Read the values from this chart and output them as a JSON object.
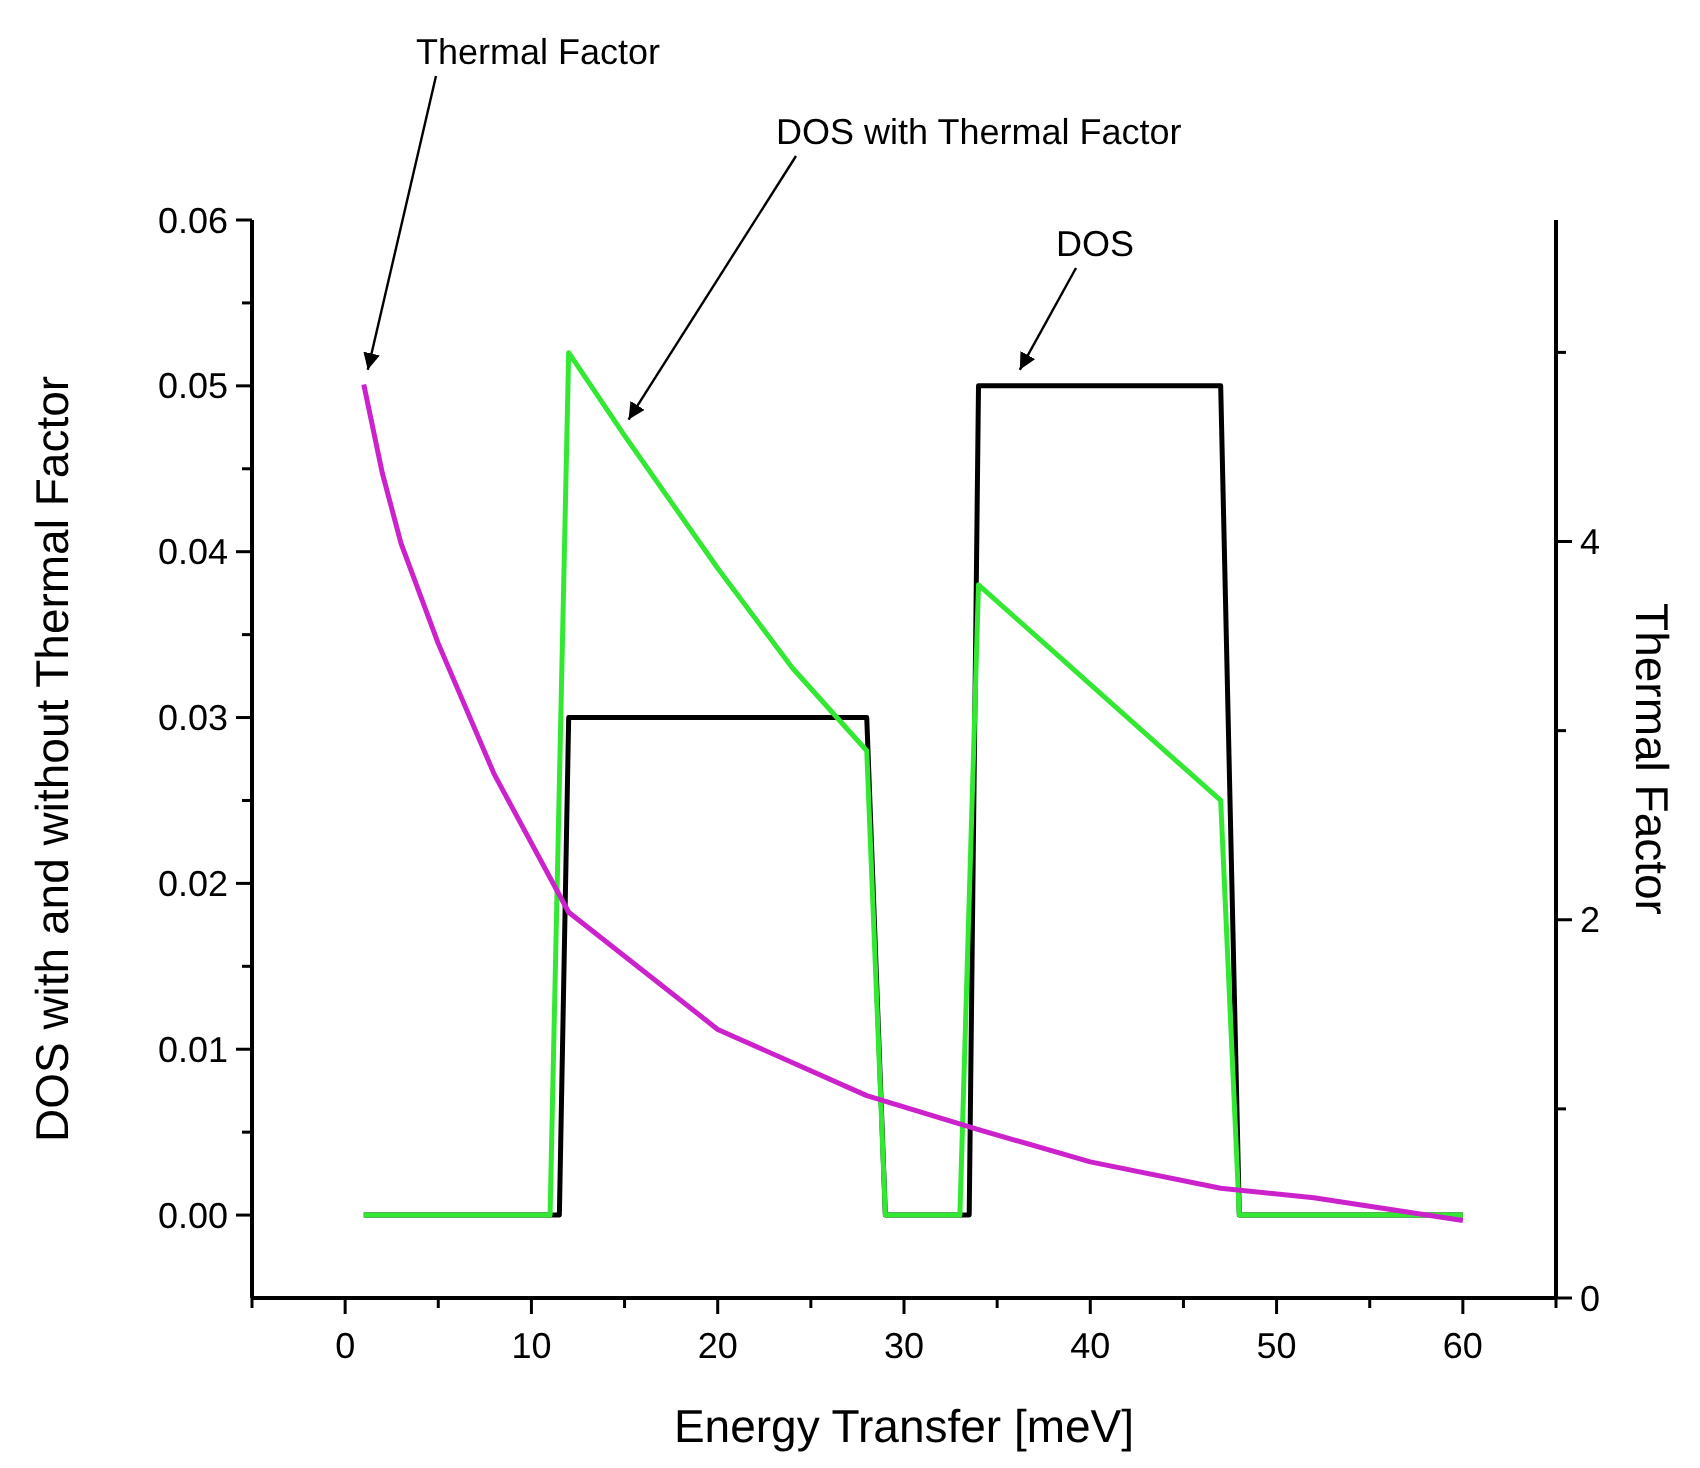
{
  "chart_data": {
    "type": "line",
    "xlabel": "Energy Transfer [meV]",
    "ylabel": "DOS with and without Thermal Factor",
    "y2label": "Thermal Factor",
    "xlim": [
      -5,
      65
    ],
    "xticks": [
      {
        "value": -5,
        "label": null
      },
      0,
      {
        "value": 5,
        "label": null
      },
      10,
      {
        "value": 15,
        "label": null
      },
      20,
      {
        "value": 25,
        "label": null
      },
      30,
      {
        "value": 35,
        "label": null
      },
      40,
      {
        "value": 45,
        "label": null
      },
      50,
      {
        "value": 55,
        "label": null
      },
      60,
      {
        "value": 65,
        "label": null
      }
    ],
    "ylim": [
      -0.005,
      0.06
    ],
    "yticks": [
      {
        "value": 0,
        "label": "0.00"
      },
      {
        "value": 0.005,
        "label": null
      },
      {
        "value": 0.01,
        "label": "0.01"
      },
      {
        "value": 0.015,
        "label": null
      },
      {
        "value": 0.02,
        "label": "0.02"
      },
      {
        "value": 0.025,
        "label": null
      },
      {
        "value": 0.03,
        "label": "0.03"
      },
      {
        "value": 0.035,
        "label": null
      },
      {
        "value": 0.04,
        "label": "0.04"
      },
      {
        "value": 0.045,
        "label": null
      },
      {
        "value": 0.05,
        "label": "0.05"
      },
      {
        "value": 0.055,
        "label": null
      },
      {
        "value": 0.06,
        "label": "0.06"
      }
    ],
    "y2lim": [
      0,
      5.7
    ],
    "y2ticks": [
      0,
      {
        "value": 1,
        "label": null
      },
      2,
      {
        "value": 3,
        "label": null
      },
      4,
      {
        "value": 5,
        "label": null
      }
    ],
    "grid": false,
    "line_style": "solid",
    "series": [
      {
        "color": "#000000",
        "x": [
          1,
          11.5,
          12,
          28,
          29,
          33.5,
          34,
          47,
          48,
          60
        ],
        "values": [
          0,
          0,
          0.03,
          0.03,
          0,
          0,
          0.05,
          0.05,
          0,
          0
        ]
      },
      {
        "color": "#33e833",
        "x": [
          1,
          11,
          12,
          15,
          20,
          24,
          28,
          29,
          33,
          34,
          38,
          42,
          47,
          48,
          60
        ],
        "values": [
          0,
          0,
          0.052,
          0.047,
          0.039,
          0.033,
          0.028,
          0,
          0,
          0.038,
          0.034,
          0.03,
          0.025,
          0,
          0
        ]
      },
      {
        "color": "#cc22cc",
        "axis": "y2",
        "x": [
          1,
          2,
          3,
          5,
          8,
          12,
          20,
          28,
          34,
          40,
          47,
          52,
          60
        ],
        "values": [
          4.83,
          4.36,
          3.99,
          3.46,
          2.77,
          2.04,
          1.42,
          1.07,
          0.89,
          0.72,
          0.58,
          0.53,
          0.41
        ]
      }
    ],
    "annotations": [
      {
        "text": "Thermal Factor",
        "x": 1,
        "y": 0.05
      },
      {
        "text": "DOS with Thermal Factor",
        "x": 15,
        "y": 0.047
      },
      {
        "text": "DOS",
        "x": 36,
        "y": 0.05
      }
    ]
  }
}
